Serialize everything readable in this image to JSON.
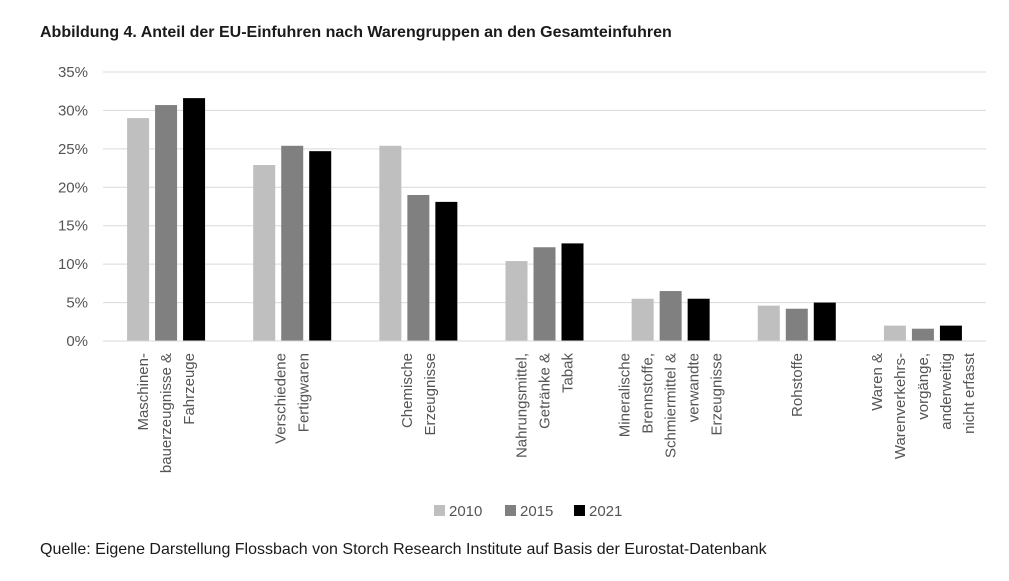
{
  "title": "Abbildung 4. Anteil der EU-Einfuhren nach Warengruppen an den Gesamteinfuhren",
  "source": "Quelle: Eigene Darstellung Flossbach von Storch Research Institute auf Basis der Eurostat-Datenbank",
  "chart_data": {
    "type": "bar",
    "title": "Abbildung 4. Anteil der EU-Einfuhren nach Warengruppen an den Gesamteinfuhren",
    "xlabel": "",
    "ylabel": "",
    "ylim": [
      0,
      35
    ],
    "yticks": [
      "0%",
      "5%",
      "10%",
      "15%",
      "20%",
      "25%",
      "30%",
      "35%"
    ],
    "grid": true,
    "legend_position": "bottom",
    "categories": [
      [
        "Maschinen-",
        "bauerzeugnisse &",
        "Fahrzeuge"
      ],
      [
        "Verschiedene",
        "Fertigwaren"
      ],
      [
        "Chemische",
        "Erzeugnisse"
      ],
      [
        "Nahrungsmittel,",
        "Getränke &",
        "Tabak"
      ],
      [
        "Mineralische",
        "Brennstoffe,",
        "Schmiermittel &",
        "verwandte",
        "Erzeugnisse"
      ],
      [
        "Rohstoffe"
      ],
      [
        "Waren &",
        "Warenverkehrs-",
        "vorgänge,",
        "anderweitig",
        "nicht erfasst"
      ]
    ],
    "series": [
      {
        "name": "2010",
        "color": "#bfbfbf",
        "values": [
          29.0,
          22.9,
          25.4,
          10.4,
          5.5,
          4.6,
          2.0
        ]
      },
      {
        "name": "2015",
        "color": "#808080",
        "values": [
          30.7,
          25.4,
          19.0,
          12.2,
          6.5,
          4.2,
          1.6
        ]
      },
      {
        "name": "2021",
        "color": "#000000",
        "values": [
          31.6,
          24.7,
          18.1,
          12.7,
          5.5,
          5.0,
          2.0
        ]
      }
    ]
  }
}
